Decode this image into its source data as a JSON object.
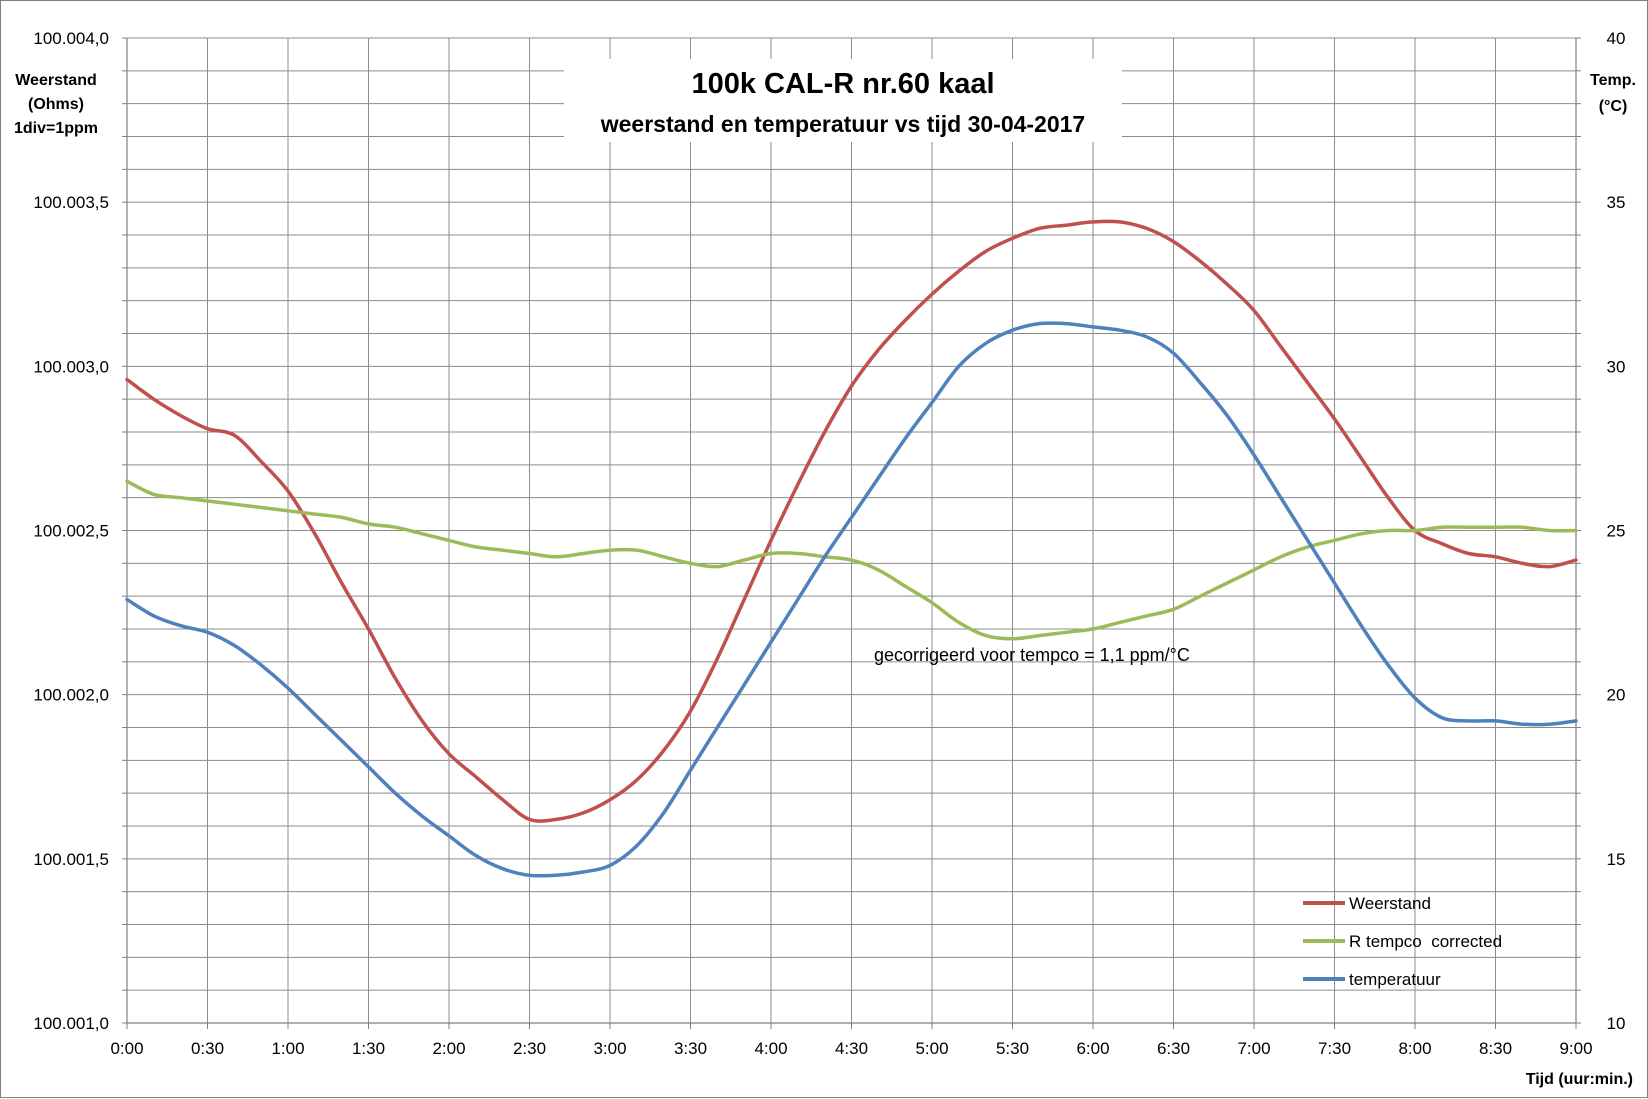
{
  "chart_data": {
    "type": "line",
    "title": "100k CAL-R nr.60 kaal",
    "subtitle": "weerstand en temperatuur vs tijd 30-04-2017",
    "xlabel": "Tijd (uur:min.)",
    "ylabel_left": [
      "Weerstand",
      "(Ohms)",
      "1div=1ppm"
    ],
    "ylabel_right": [
      "Temp.",
      "(°C)"
    ],
    "x_ticks": [
      "0:00",
      "0:30",
      "1:00",
      "1:30",
      "2:00",
      "2:30",
      "3:00",
      "3:30",
      "4:00",
      "4:30",
      "5:00",
      "5:30",
      "6:00",
      "6:30",
      "7:00",
      "7:30",
      "8:00",
      "8:30",
      "9:00"
    ],
    "xlim_minutes": [
      0,
      540
    ],
    "y_left_ticks": [
      "100.004,0",
      "100.003,5",
      "100.003,0",
      "100.002,5",
      "100.002,0",
      "100.001,5",
      "100.001,0"
    ],
    "ylim_left": [
      100.001,
      100.004
    ],
    "y_right_ticks": [
      "40",
      "35",
      "30",
      "25",
      "20",
      "15",
      "10"
    ],
    "ylim_right": [
      10,
      40
    ],
    "grid": true,
    "legend_position": "bottom-right",
    "annotation": "gecorrigeerd voor tempco = 1,1 ppm/°C",
    "x": [
      "0:00",
      "0:10",
      "0:20",
      "0:30",
      "0:40",
      "0:50",
      "1:00",
      "1:10",
      "1:20",
      "1:30",
      "1:40",
      "1:50",
      "2:00",
      "2:10",
      "2:20",
      "2:30",
      "2:40",
      "2:50",
      "3:00",
      "3:10",
      "3:20",
      "3:30",
      "3:40",
      "3:50",
      "4:00",
      "4:10",
      "4:20",
      "4:30",
      "4:40",
      "4:50",
      "5:00",
      "5:10",
      "5:20",
      "5:30",
      "5:40",
      "5:50",
      "6:00",
      "6:10",
      "6:20",
      "6:30",
      "6:40",
      "6:50",
      "7:00",
      "7:10",
      "7:20",
      "7:30",
      "7:40",
      "7:50",
      "8:00",
      "8:10",
      "8:20",
      "8:30",
      "8:40",
      "8:50",
      "9:00"
    ],
    "series": [
      {
        "name": "Weerstand",
        "axis": "left",
        "color": "#c0504d",
        "values": [
          100.00296,
          100.0029,
          100.00285,
          100.00281,
          100.00279,
          100.00271,
          100.00262,
          100.00249,
          100.00234,
          100.0022,
          100.00205,
          100.00192,
          100.00182,
          100.00175,
          100.00168,
          100.00162,
          100.00162,
          100.00164,
          100.00168,
          100.00174,
          100.00183,
          100.00195,
          100.00211,
          100.00229,
          100.00247,
          100.00264,
          100.0028,
          100.00294,
          100.00305,
          100.00314,
          100.00322,
          100.00329,
          100.00335,
          100.00339,
          100.00342,
          100.00343,
          100.00344,
          100.00344,
          100.00342,
          100.00338,
          100.00332,
          100.00325,
          100.00317,
          100.00306,
          100.00295,
          100.00284,
          100.00272,
          100.0026,
          100.0025,
          100.00246,
          100.00243,
          100.00242,
          100.0024,
          100.00239,
          100.00241
        ]
      },
      {
        "name": "R tempco  corrected",
        "axis": "left",
        "color": "#9bbb59",
        "values": [
          100.00265,
          100.00261,
          100.0026,
          100.00259,
          100.00258,
          100.00257,
          100.00256,
          100.00255,
          100.00254,
          100.00252,
          100.00251,
          100.00249,
          100.00247,
          100.00245,
          100.00244,
          100.00243,
          100.00242,
          100.00243,
          100.00244,
          100.00244,
          100.00242,
          100.0024,
          100.00239,
          100.00241,
          100.00243,
          100.00243,
          100.00242,
          100.00241,
          100.00238,
          100.00233,
          100.00228,
          100.00222,
          100.00218,
          100.00217,
          100.00218,
          100.00219,
          100.0022,
          100.00222,
          100.00224,
          100.00226,
          100.0023,
          100.00234,
          100.00238,
          100.00242,
          100.00245,
          100.00247,
          100.00249,
          100.0025,
          100.0025,
          100.00251,
          100.00251,
          100.00251,
          100.00251,
          100.0025,
          100.0025
        ]
      },
      {
        "name": "temperatuur",
        "axis": "right",
        "color": "#4f81bd",
        "values": [
          22.9,
          22.4,
          22.1,
          21.9,
          21.5,
          20.9,
          20.2,
          19.4,
          18.6,
          17.8,
          17.0,
          16.3,
          15.7,
          15.1,
          14.7,
          14.5,
          14.5,
          14.6,
          14.8,
          15.4,
          16.4,
          17.7,
          19.0,
          20.3,
          21.6,
          22.9,
          24.2,
          25.4,
          26.6,
          27.8,
          28.9,
          30.0,
          30.7,
          31.1,
          31.3,
          31.3,
          31.2,
          31.1,
          30.9,
          30.4,
          29.5,
          28.5,
          27.3,
          26.0,
          24.7,
          23.4,
          22.1,
          20.9,
          19.9,
          19.3,
          19.2,
          19.2,
          19.1,
          19.1,
          19.2
        ]
      }
    ]
  }
}
